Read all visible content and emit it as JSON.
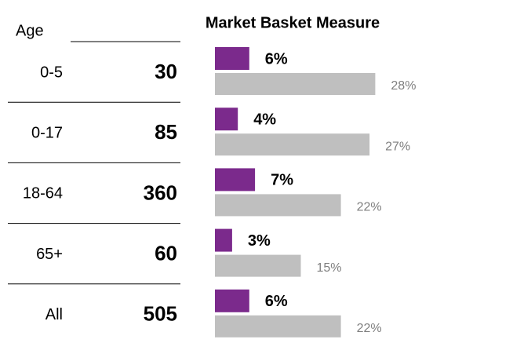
{
  "chart_data": {
    "type": "bar",
    "title": "Market Basket Measure",
    "category_header": "Age",
    "categories": [
      "0-5",
      "0-17",
      "18-64",
      "65+",
      "All"
    ],
    "counts": [
      30,
      85,
      360,
      60,
      505
    ],
    "series": [
      {
        "color": "#7b2a8c",
        "label_color": "#000000",
        "values": [
          6,
          4,
          7,
          3,
          6
        ],
        "value_labels": [
          "6%",
          "4%",
          "7%",
          "3%",
          "6%"
        ]
      },
      {
        "color": "#bfbfbf",
        "label_color": "#7f7f7f",
        "values": [
          28,
          27,
          22,
          15,
          22
        ],
        "value_labels": [
          "28%",
          "27%",
          "22%",
          "15%",
          "22%"
        ]
      }
    ]
  }
}
